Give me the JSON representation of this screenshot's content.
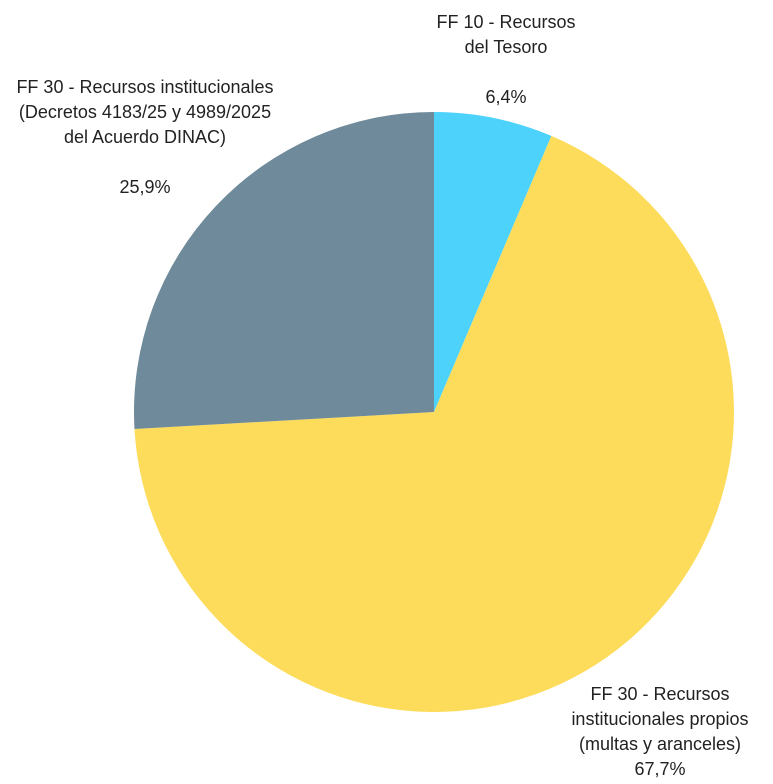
{
  "chart_data": {
    "type": "pie",
    "categories": [
      "FF 10 - Recursos del Tesoro",
      "FF 30 - Recursos institucionales propios (multas y aranceles)",
      "FF 30 - Recursos institucionales (Decretos 4183/25 y 4989/2025 del Acuerdo DINAC)"
    ],
    "values": [
      6.4,
      67.7,
      25.9
    ],
    "value_labels": [
      "6,4%",
      "67,7%",
      "25,9%"
    ],
    "colors": [
      "#4dd2fc",
      "#fddc5c",
      "#6f8a9a"
    ]
  }
}
